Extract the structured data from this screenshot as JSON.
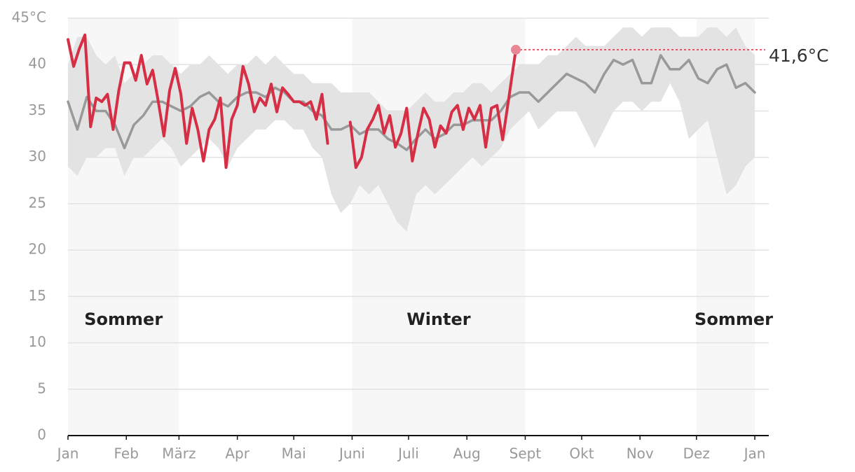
{
  "chart_data": {
    "type": "line",
    "xlim": [
      0,
      365
    ],
    "xticks": [
      {
        "value": 0,
        "label": "Jan"
      },
      {
        "value": 31,
        "label": "Feb"
      },
      {
        "value": 59,
        "label": "März"
      },
      {
        "value": 90,
        "label": "Apr"
      },
      {
        "value": 120,
        "label": "Mai"
      },
      {
        "value": 151,
        "label": "Juni"
      },
      {
        "value": 181,
        "label": "Juli"
      },
      {
        "value": 212,
        "label": "Aug"
      },
      {
        "value": 243,
        "label": "Sept"
      },
      {
        "value": 273,
        "label": "Okt"
      },
      {
        "value": 304,
        "label": "Nov"
      },
      {
        "value": 334,
        "label": "Dez"
      },
      {
        "value": 365,
        "label": "Jan"
      }
    ],
    "ylim": [
      0,
      45
    ],
    "yticks": [
      0,
      5,
      10,
      15,
      20,
      25,
      30,
      35,
      40,
      {
        "value": 45,
        "label": "45°C"
      }
    ],
    "grid": true,
    "seasons": [
      {
        "label": "Sommer",
        "start": 0,
        "end": 59
      },
      {
        "label": "Winter",
        "start": 151,
        "end": 243
      },
      {
        "label": "Sommer",
        "start": 334,
        "end": 365
      }
    ],
    "x": [
      0,
      5,
      10,
      15,
      20,
      25,
      30,
      35,
      40,
      45,
      50,
      55,
      60,
      65,
      70,
      75,
      80,
      85,
      90,
      95,
      100,
      105,
      110,
      115,
      120,
      125,
      130,
      135,
      140,
      145,
      150,
      155,
      160,
      165,
      170,
      175,
      180,
      185,
      190,
      195,
      200,
      205,
      210,
      215,
      220,
      225,
      230,
      235,
      240,
      245,
      250,
      255,
      260,
      265,
      270,
      275,
      280,
      285,
      290,
      295,
      300,
      305,
      310,
      315,
      320,
      325,
      330,
      335,
      340,
      345,
      350,
      355,
      360,
      365
    ],
    "range": {
      "color": "#e3e3e3",
      "low": [
        29,
        28,
        30,
        30,
        31,
        31,
        28,
        30,
        30,
        31,
        32,
        31,
        29,
        30,
        31,
        32,
        31,
        29,
        31,
        32,
        33,
        33,
        34,
        34,
        33,
        33,
        31,
        30,
        26,
        24,
        25,
        27,
        26,
        27,
        25,
        23,
        22,
        26,
        27,
        26,
        27,
        28,
        29,
        30,
        29,
        30,
        31,
        33,
        34,
        35,
        33,
        34,
        35,
        35,
        35,
        33,
        31,
        33,
        35,
        36,
        36,
        35,
        36,
        36,
        38,
        36,
        32,
        33,
        34,
        30,
        26,
        27,
        29,
        30
      ],
      "high": [
        40,
        43,
        43,
        41,
        40,
        41,
        38,
        39,
        40,
        41,
        41,
        40,
        39,
        40,
        40,
        41,
        40,
        39,
        40,
        40,
        41,
        40,
        41,
        40,
        39,
        39,
        38,
        38,
        38,
        37,
        37,
        37,
        37,
        36,
        35,
        35,
        35,
        36,
        37,
        36,
        36,
        37,
        37,
        38,
        38,
        37,
        38,
        39,
        40,
        40,
        40,
        41,
        41,
        42,
        43,
        42,
        42,
        42,
        43,
        44,
        44,
        43,
        44,
        44,
        44,
        43,
        43,
        43,
        44,
        44,
        43,
        44,
        42,
        41
      ]
    },
    "series": [
      {
        "color": "#999999",
        "values": [
          36,
          33,
          36.5,
          35,
          35,
          33.5,
          31,
          33.5,
          34.5,
          36,
          36,
          35.5,
          35,
          35.5,
          36.5,
          37,
          36,
          35.5,
          36.5,
          37,
          37,
          36.5,
          37.5,
          37,
          36,
          36,
          35,
          34.5,
          33,
          33,
          33.5,
          32.5,
          33,
          33,
          32,
          31.5,
          30.8,
          32,
          33,
          32,
          32.5,
          33.5,
          33.5,
          34,
          34,
          34,
          35,
          36.5,
          37,
          37,
          36,
          37,
          38,
          39,
          38.5,
          38,
          37,
          39,
          40.5,
          40,
          40.5,
          38,
          38,
          41,
          39.5,
          39.5,
          40.5,
          38.5,
          38,
          39.5,
          40,
          37.5,
          38,
          37
        ]
      },
      {
        "color": "#d62e44",
        "x": [
          0,
          3,
          6,
          9,
          12,
          15,
          18,
          21,
          24,
          27,
          30,
          33,
          36,
          39,
          42,
          45,
          48,
          51,
          54,
          57,
          60,
          63,
          66,
          69,
          72,
          75,
          78,
          81,
          84,
          87,
          90,
          93,
          96,
          99,
          102,
          105,
          108,
          111,
          114,
          117,
          120,
          123,
          126,
          129,
          132,
          135,
          138,
          141,
          144,
          147,
          150,
          153,
          156,
          159,
          162,
          165,
          168,
          171,
          174,
          177,
          180,
          183,
          186,
          189,
          192,
          195,
          198,
          201,
          204,
          207,
          210,
          213,
          216,
          219,
          222,
          225,
          228,
          231,
          234,
          238
        ],
        "values": [
          42.7,
          39.8,
          41.7,
          43.2,
          33.3,
          36.4,
          36,
          36.8,
          33,
          37.2,
          40.2,
          40.2,
          38.3,
          41,
          37.9,
          39.4,
          36,
          32.3,
          37.2,
          39.6,
          36.8,
          31.5,
          35.3,
          33,
          29.6,
          33,
          34.1,
          36.4,
          28.9,
          34.1,
          35.6,
          39.8,
          37.9,
          34.9,
          36.4,
          35.6,
          37.9,
          34.9,
          37.5,
          36.8,
          36,
          36,
          35.6,
          36,
          34.1,
          36.8,
          31.5,
          null,
          null,
          null,
          33.8,
          28.9,
          30,
          33,
          34.1,
          35.6,
          32.6,
          34.5,
          31.1,
          32.6,
          35.3,
          29.6,
          32.6,
          35.3,
          34.1,
          31.1,
          33.4,
          32.6,
          34.9,
          35.6,
          33,
          35.3,
          34.1,
          35.6,
          31.1,
          35.3,
          35.6,
          31.9,
          36,
          41.6
        ]
      }
    ],
    "annotation": {
      "x": 238,
      "value": 41.6,
      "label": "41,6°C"
    }
  }
}
